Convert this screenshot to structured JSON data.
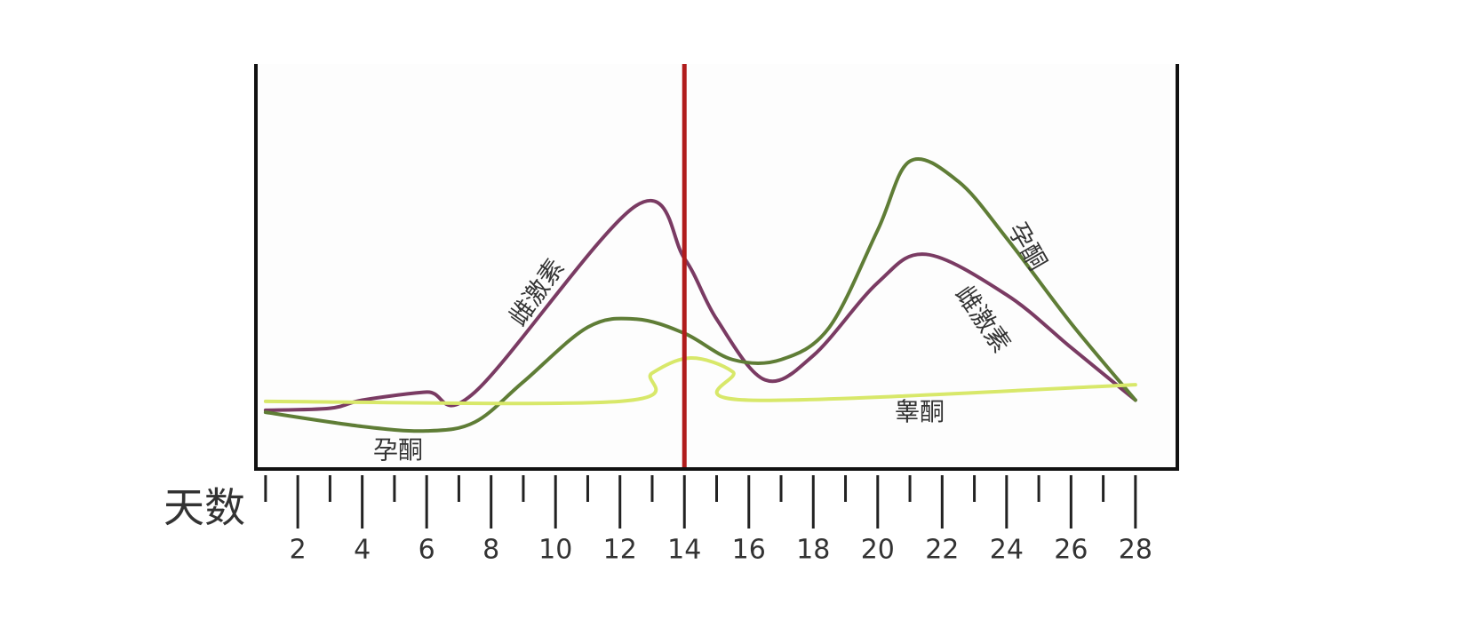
{
  "chart_data": {
    "type": "line",
    "xlabel": "天数",
    "xlim": [
      0.7,
      29.3
    ],
    "ylim": [
      0,
      100
    ],
    "xticks": [
      2,
      4,
      6,
      8,
      10,
      12,
      14,
      16,
      18,
      20,
      22,
      24,
      26,
      28
    ],
    "minor_xticks": [
      1,
      3,
      5,
      7,
      9,
      11,
      13,
      15,
      17,
      19,
      21,
      23,
      25,
      27
    ],
    "marker_x": 14,
    "marker_color": "#b01c1c",
    "series": [
      {
        "name": "雌激素",
        "color": "#7a3b63",
        "x": [
          1,
          3,
          4,
          6,
          7.5,
          12.5,
          14,
          15,
          16.5,
          18,
          20,
          21.5,
          24,
          26,
          28
        ],
        "values": [
          14.5,
          15,
          17,
          19,
          19,
          65,
          52,
          37,
          22,
          28,
          46,
          53,
          43,
          30,
          17
        ]
      },
      {
        "name": "孕酮",
        "color": "#5f7d36",
        "x": [
          1,
          4,
          6,
          7.5,
          9,
          11,
          12.5,
          14,
          15.5,
          17,
          18.5,
          20,
          21,
          22.5,
          24,
          26,
          28
        ],
        "values": [
          14,
          10.5,
          9.4,
          11.6,
          21.5,
          35,
          37,
          33.5,
          27,
          27,
          35,
          59,
          76,
          71,
          57,
          36,
          17
        ]
      },
      {
        "name": "睾酮",
        "color": "#d8e86a",
        "x": [
          1,
          12,
          13,
          14.2,
          15.5,
          16,
          28
        ],
        "values": [
          16.7,
          16.7,
          23.7,
          27.4,
          24,
          17,
          20.8
        ]
      }
    ],
    "annotations": [
      "孕酮",
      "雌激素"
    ]
  }
}
